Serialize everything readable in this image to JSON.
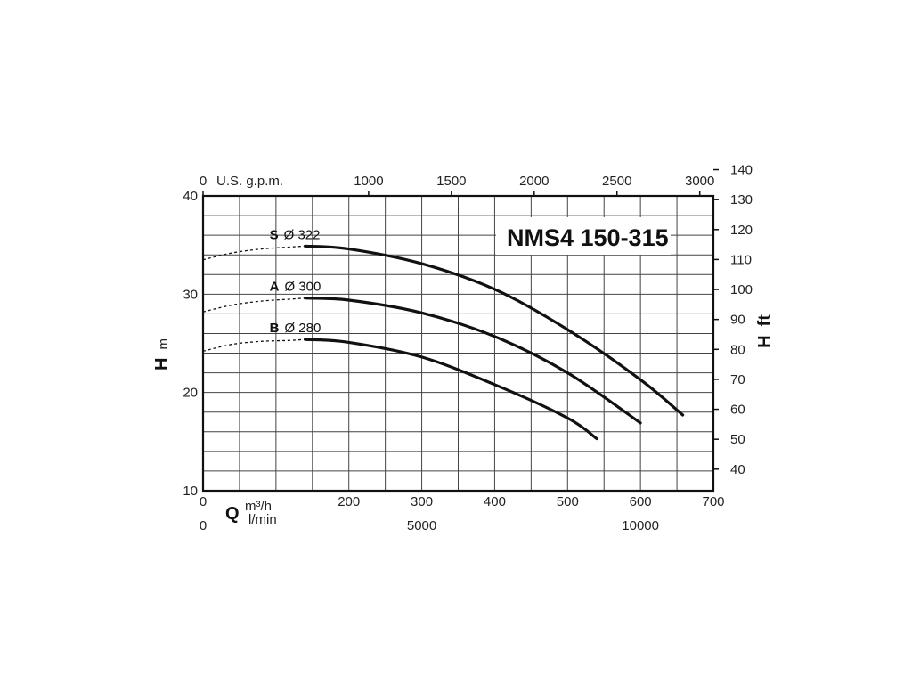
{
  "chart_data": {
    "type": "line",
    "title": "NMS4 150-315",
    "x_primary": {
      "unit_label": "m³/h",
      "range": [
        0,
        700
      ],
      "ticks": [
        "0",
        "200",
        "300",
        "400",
        "500",
        "600",
        "700"
      ]
    },
    "x_secondary": {
      "unit_label": "l/min",
      "ticks": [
        "0",
        "5000",
        "10000"
      ]
    },
    "x_top": {
      "unit_label": "U.S. g.p.m.",
      "ticks": [
        "0",
        "1000",
        "1500",
        "2000",
        "2500",
        "3000"
      ]
    },
    "x_symbol": "Q",
    "y_left": {
      "symbol": "H",
      "unit": "m",
      "range": [
        10,
        40
      ],
      "ticks": [
        "10",
        "20",
        "30",
        "40"
      ]
    },
    "y_right": {
      "symbol": "H",
      "unit": "ft",
      "ticks": [
        "40",
        "50",
        "60",
        "70",
        "80",
        "90",
        "100",
        "110",
        "120",
        "130",
        "140"
      ]
    },
    "grid": true,
    "series": [
      {
        "letter": "S",
        "diameter": "Ø 322",
        "dashed": [
          [
            0,
            33.5
          ],
          [
            40,
            34.2
          ],
          [
            80,
            34.6
          ],
          [
            120,
            34.8
          ],
          [
            140,
            34.9
          ]
        ],
        "solid": [
          [
            140,
            34.9
          ],
          [
            200,
            34.6
          ],
          [
            300,
            33.1
          ],
          [
            400,
            30.5
          ],
          [
            500,
            26.4
          ],
          [
            600,
            21.3
          ],
          [
            658,
            17.7
          ]
        ]
      },
      {
        "letter": "A",
        "diameter": "Ø 300",
        "dashed": [
          [
            0,
            28.2
          ],
          [
            40,
            28.9
          ],
          [
            80,
            29.3
          ],
          [
            120,
            29.5
          ],
          [
            140,
            29.6
          ]
        ],
        "solid": [
          [
            140,
            29.6
          ],
          [
            200,
            29.4
          ],
          [
            300,
            28.1
          ],
          [
            400,
            25.7
          ],
          [
            500,
            22.0
          ],
          [
            600,
            16.9
          ]
        ]
      },
      {
        "letter": "B",
        "diameter": "Ø 280",
        "dashed": [
          [
            0,
            24.2
          ],
          [
            40,
            24.9
          ],
          [
            80,
            25.2
          ],
          [
            120,
            25.3
          ],
          [
            140,
            25.4
          ]
        ],
        "solid": [
          [
            140,
            25.4
          ],
          [
            200,
            25.1
          ],
          [
            300,
            23.6
          ],
          [
            400,
            20.8
          ],
          [
            500,
            17.4
          ],
          [
            540,
            15.3
          ]
        ]
      }
    ]
  }
}
